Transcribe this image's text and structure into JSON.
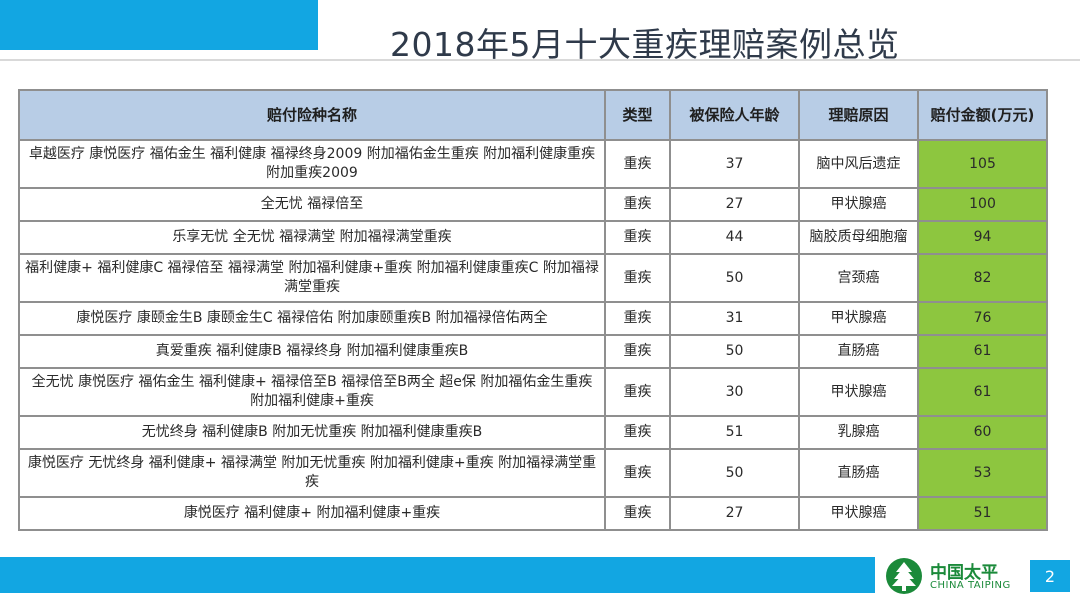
{
  "title": "2018年5月十大重疾理赔案例总览",
  "table": {
    "headers": [
      "赔付险种名称",
      "类型",
      "被保险人年龄",
      "理赔原因",
      "赔付金额(万元)"
    ],
    "rows": [
      [
        "卓越医疗 康悦医疗 福佑金生 福利健康 福禄终身2009 附加福佑金生重疾 附加福利健康重疾 附加重疾2009",
        "重疾",
        "37",
        "脑中风后遗症",
        "105"
      ],
      [
        "全无忧 福禄倍至",
        "重疾",
        "27",
        "甲状腺癌",
        "100"
      ],
      [
        "乐享无忧 全无忧 福禄满堂 附加福禄满堂重疾",
        "重疾",
        "44",
        "脑胶质母细胞瘤",
        "94"
      ],
      [
        "福利健康+ 福利健康C 福禄倍至 福禄满堂 附加福利健康+重疾 附加福利健康重疾C 附加福禄满堂重疾",
        "重疾",
        "50",
        "宫颈癌",
        "82"
      ],
      [
        "康悦医疗 康颐金生B 康颐金生C 福禄倍佑 附加康颐重疾B 附加福禄倍佑两全",
        "重疾",
        "31",
        "甲状腺癌",
        "76"
      ],
      [
        "真爱重疾 福利健康B 福禄终身 附加福利健康重疾B",
        "重疾",
        "50",
        "直肠癌",
        "61"
      ],
      [
        "全无忧 康悦医疗 福佑金生 福利健康+ 福禄倍至B 福禄倍至B两全 超e保 附加福佑金生重疾 附加福利健康+重疾",
        "重疾",
        "30",
        "甲状腺癌",
        "61"
      ],
      [
        "无忧终身 福利健康B 附加无忧重疾 附加福利健康重疾B",
        "重疾",
        "51",
        "乳腺癌",
        "60"
      ],
      [
        "康悦医疗 无忧终身 福利健康+ 福禄满堂 附加无忧重疾 附加福利健康+重疾 附加福禄满堂重疾",
        "重疾",
        "50",
        "直肠癌",
        "53"
      ],
      [
        "康悦医疗 福利健康+ 附加福利健康+重疾",
        "重疾",
        "27",
        "甲状腺癌",
        "51"
      ]
    ]
  },
  "logo": {
    "cn": "中国太平",
    "en": "CHINA TAIPING"
  },
  "page_number": "2",
  "colors": {
    "accent_blue": "#12a6e2",
    "header_bg": "#b8cde6",
    "amount_green": "#8dc63f",
    "logo_green": "#1b8a3a"
  }
}
